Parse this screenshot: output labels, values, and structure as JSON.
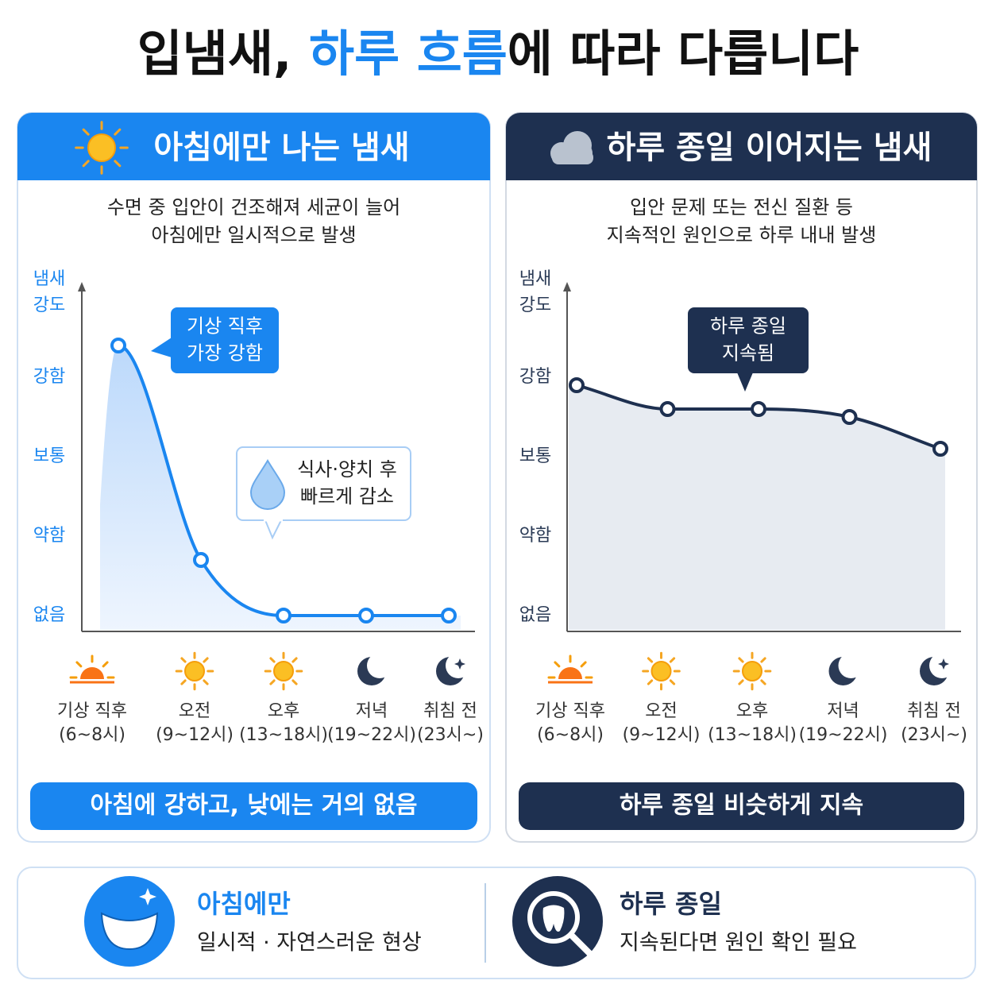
{
  "title_parts": [
    "입냄새, ",
    "하루 흐름",
    "에 따라 다릅니다"
  ],
  "chart_data": [
    {
      "type": "line",
      "header": "아침에만 나는 냄새",
      "description": [
        "수면 중 입안이 건조해져 세균이 늘어",
        "아침에만 일시적으로 발생"
      ],
      "y_label": [
        "냄새",
        "강도"
      ],
      "categories": [
        "기상 직후",
        "오전",
        "오후",
        "저녁",
        "취침 전"
      ],
      "category_sublabels": [
        "(6~8시)",
        "(9~12시)",
        "(13~18시)",
        "(19~22시)",
        "(23시~)"
      ],
      "icons": [
        "sunrise",
        "sun",
        "sun",
        "moon",
        "moon-star"
      ],
      "values": [
        3.4,
        0.7,
        0,
        0,
        0
      ],
      "color": "#1a86f0",
      "ylim": [
        -0.2,
        4.2
      ],
      "yticks": [
        {
          "value": 0,
          "label": "없음"
        },
        {
          "value": 1,
          "label": "약함"
        },
        {
          "value": 2,
          "label": "보통"
        },
        {
          "value": 3,
          "label": "강함"
        }
      ],
      "annotations": [
        {
          "lines": [
            "기상 직후",
            "가장 강함"
          ]
        },
        {
          "lines": [
            "식사·양치 후",
            "빠르게 감소"
          ]
        }
      ],
      "summary": "아침에 강하고, 낮에는 거의 없음"
    },
    {
      "type": "line",
      "header": "하루 종일 이어지는 냄새",
      "description": [
        "입안 문제 또는 전신 질환 등",
        "지속적인 원인으로 하루 내내 발생"
      ],
      "y_label": [
        "냄새",
        "강도"
      ],
      "categories": [
        "기상 직후",
        "오전",
        "오후",
        "저녁",
        "취침 전"
      ],
      "category_sublabels": [
        "(6~8시)",
        "(9~12시)",
        "(13~18시)",
        "(19~22시)",
        "(23시~)"
      ],
      "icons": [
        "sunrise",
        "sun",
        "sun",
        "moon",
        "moon-star"
      ],
      "values": [
        2.9,
        2.6,
        2.6,
        2.5,
        2.1
      ],
      "color": "#1e3050",
      "ylim": [
        -0.2,
        4.2
      ],
      "yticks": [
        {
          "value": 0,
          "label": "없음"
        },
        {
          "value": 1,
          "label": "약함"
        },
        {
          "value": 2,
          "label": "보통"
        },
        {
          "value": 3,
          "label": "강함"
        }
      ],
      "annotations": [
        {
          "lines": [
            "하루 종일",
            "지속됨"
          ]
        }
      ],
      "summary": "하루 종일 비슷하게 지속"
    }
  ],
  "footer": [
    {
      "title": "아침에만",
      "text": "일시적 · 자연스러운 현상"
    },
    {
      "title": "하루 종일",
      "text": "지속된다면 원인 확인 필요"
    }
  ]
}
